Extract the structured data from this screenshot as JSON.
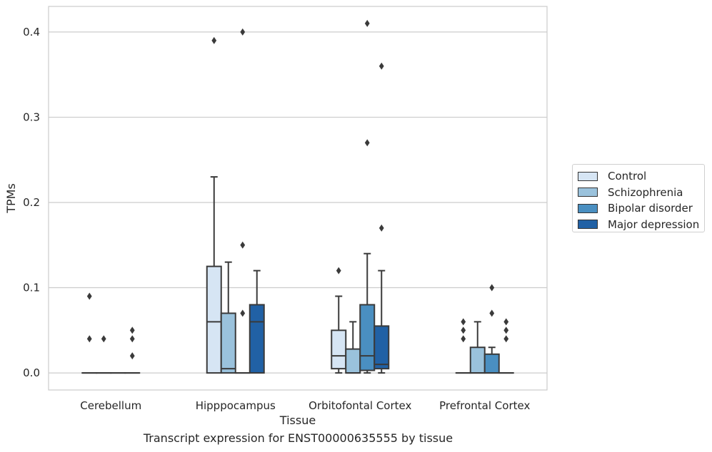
{
  "chart_data": {
    "type": "box",
    "xlabel": "Tissue",
    "ylabel": "TPMs",
    "ylim": [
      -0.02,
      0.43
    ],
    "yticks": [
      0.0,
      0.1,
      0.2,
      0.3,
      0.4
    ],
    "ytick_labels": [
      "0.0",
      "0.1",
      "0.2",
      "0.3",
      "0.4"
    ],
    "grid": "horizontal",
    "legend_position": "right",
    "categories": [
      "Cerebellum",
      "Hipppocampus",
      "Orbitofontal Cortex",
      "Prefrontal Cortex"
    ],
    "series": [
      {
        "name": "Control",
        "color": "#d6e5f4",
        "boxes": [
          {
            "whislo": 0.0,
            "q1": 0.0,
            "med": 0.0,
            "q3": 0.0,
            "whishi": 0.0,
            "fliers": [
              0.09,
              0.04
            ]
          },
          {
            "whislo": 0.0,
            "q1": 0.0,
            "med": 0.06,
            "q3": 0.125,
            "whishi": 0.23,
            "fliers": [
              0.39
            ]
          },
          {
            "whislo": 0.0,
            "q1": 0.005,
            "med": 0.02,
            "q3": 0.05,
            "whishi": 0.09,
            "fliers": [
              0.12
            ]
          },
          {
            "whislo": 0.0,
            "q1": 0.0,
            "med": 0.0,
            "q3": 0.0,
            "whishi": 0.0,
            "fliers": [
              0.06,
              0.05,
              0.04
            ]
          }
        ]
      },
      {
        "name": "Schizophrenia",
        "color": "#9ac2dc",
        "boxes": [
          {
            "whislo": 0.0,
            "q1": 0.0,
            "med": 0.0,
            "q3": 0.0,
            "whishi": 0.0,
            "fliers": [
              0.04
            ]
          },
          {
            "whislo": 0.0,
            "q1": 0.0,
            "med": 0.005,
            "q3": 0.07,
            "whishi": 0.13,
            "fliers": []
          },
          {
            "whislo": 0.0,
            "q1": 0.0,
            "med": 0.0,
            "q3": 0.028,
            "whishi": 0.06,
            "fliers": []
          },
          {
            "whislo": 0.0,
            "q1": 0.0,
            "med": 0.0,
            "q3": 0.03,
            "whishi": 0.06,
            "fliers": []
          }
        ]
      },
      {
        "name": "Bipolar disorder",
        "color": "#4a8fc1",
        "boxes": [
          {
            "whislo": 0.0,
            "q1": 0.0,
            "med": 0.0,
            "q3": 0.0,
            "whishi": 0.0,
            "fliers": []
          },
          {
            "whislo": 0.0,
            "q1": 0.0,
            "med": 0.0,
            "q3": 0.0,
            "whishi": 0.0,
            "fliers": [
              0.4,
              0.15,
              0.07
            ]
          },
          {
            "whislo": 0.0,
            "q1": 0.003,
            "med": 0.02,
            "q3": 0.08,
            "whishi": 0.14,
            "fliers": [
              0.41,
              0.27
            ]
          },
          {
            "whislo": 0.0,
            "q1": 0.0,
            "med": 0.0,
            "q3": 0.022,
            "whishi": 0.03,
            "fliers": [
              0.1,
              0.07
            ]
          }
        ]
      },
      {
        "name": "Major depression",
        "color": "#2161a5",
        "boxes": [
          {
            "whislo": 0.0,
            "q1": 0.0,
            "med": 0.0,
            "q3": 0.0,
            "whishi": 0.0,
            "fliers": [
              0.05,
              0.04,
              0.02
            ]
          },
          {
            "whislo": 0.0,
            "q1": 0.0,
            "med": 0.06,
            "q3": 0.08,
            "whishi": 0.12,
            "fliers": []
          },
          {
            "whislo": 0.0,
            "q1": 0.005,
            "med": 0.01,
            "q3": 0.055,
            "whishi": 0.12,
            "fliers": [
              0.36,
              0.17
            ]
          },
          {
            "whislo": 0.0,
            "q1": 0.0,
            "med": 0.0,
            "q3": 0.0,
            "whishi": 0.0,
            "fliers": [
              0.06,
              0.05,
              0.04
            ]
          }
        ]
      }
    ]
  },
  "legend": [
    {
      "label": "Control",
      "color": "#d6e5f4"
    },
    {
      "label": "Schizophrenia",
      "color": "#9ac2dc"
    },
    {
      "label": "Bipolar disorder",
      "color": "#4a8fc1"
    },
    {
      "label": "Major depression",
      "color": "#2161a5"
    }
  ],
  "caption": "Transcript expression for ENST00000635555 by tissue"
}
